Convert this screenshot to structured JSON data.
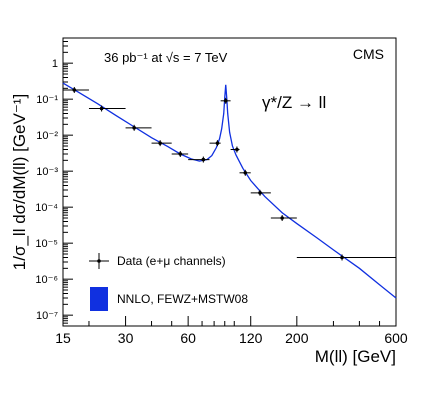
{
  "chart_data": {
    "type": "scatter",
    "title": "",
    "xlabel": "M(ll)  [GeV]",
    "ylabel": "1/σ_ll dσ/dM(ll) [GeV⁻¹]",
    "xscale": "log",
    "yscale": "log",
    "xlim": [
      15,
      600
    ],
    "ylim": [
      5e-08,
      5
    ],
    "xticks": [
      "15",
      "30",
      "60",
      "120",
      "200",
      "600"
    ],
    "yticks": [
      "10⁻⁷",
      "10⁻⁶",
      "10⁻⁵",
      "10⁻⁴",
      "10⁻³",
      "10⁻²",
      "10⁻¹",
      "1"
    ],
    "annotations": {
      "lumi": "36 pb⁻¹ at √s = 7 TeV",
      "experiment": "CMS",
      "process": "γ*/Z → ll"
    },
    "legend": {
      "placement": "bottom-left",
      "data_label": "Data (e+μ channels)",
      "theory_label": "NNLO, FEWZ+MSTW08"
    },
    "colors": {
      "theory": "#1030e0",
      "data": "#000000"
    },
    "series": [
      {
        "name": "Data (e+μ channels)",
        "points": [
          {
            "x": 17,
            "xlo": 15,
            "xhi": 20,
            "y": 0.18
          },
          {
            "x": 23,
            "xlo": 20,
            "xhi": 30,
            "y": 0.055
          },
          {
            "x": 33,
            "xlo": 30,
            "xhi": 40,
            "y": 0.016
          },
          {
            "x": 44,
            "xlo": 40,
            "xhi": 50,
            "y": 0.006
          },
          {
            "x": 55,
            "xlo": 50,
            "xhi": 60,
            "y": 0.003
          },
          {
            "x": 71,
            "xlo": 60,
            "xhi": 76,
            "y": 0.0021
          },
          {
            "x": 83,
            "xlo": 76,
            "xhi": 86,
            "y": 0.006
          },
          {
            "x": 91,
            "xlo": 86,
            "xhi": 96,
            "y": 0.09
          },
          {
            "x": 103,
            "xlo": 96,
            "xhi": 106,
            "y": 0.004
          },
          {
            "x": 113,
            "xlo": 106,
            "xhi": 120,
            "y": 0.0009
          },
          {
            "x": 133,
            "xlo": 120,
            "xhi": 150,
            "y": 0.00025
          },
          {
            "x": 170,
            "xlo": 150,
            "xhi": 200,
            "y": 5e-05
          },
          {
            "x": 330,
            "xlo": 200,
            "xhi": 600,
            "y": 4e-06
          }
        ]
      },
      {
        "name": "NNLO, FEWZ+MSTW08",
        "curve": [
          [
            15,
            0.28
          ],
          [
            18,
            0.15
          ],
          [
            22,
            0.075
          ],
          [
            27,
            0.035
          ],
          [
            33,
            0.017
          ],
          [
            40,
            0.0085
          ],
          [
            48,
            0.0048
          ],
          [
            55,
            0.003
          ],
          [
            62,
            0.0022
          ],
          [
            68,
            0.0019
          ],
          [
            74,
            0.0021
          ],
          [
            78,
            0.0027
          ],
          [
            82,
            0.0045
          ],
          [
            85,
            0.008
          ],
          [
            87,
            0.015
          ],
          [
            89,
            0.04
          ],
          [
            90,
            0.11
          ],
          [
            91,
            0.25
          ],
          [
            92,
            0.11
          ],
          [
            93,
            0.04
          ],
          [
            95,
            0.012
          ],
          [
            98,
            0.005
          ],
          [
            102,
            0.0028
          ],
          [
            110,
            0.0012
          ],
          [
            120,
            0.00055
          ],
          [
            140,
            0.0002
          ],
          [
            170,
            7e-05
          ],
          [
            200,
            3.5e-05
          ],
          [
            250,
            1.4e-05
          ],
          [
            300,
            6.5e-06
          ],
          [
            400,
            2e-06
          ],
          [
            500,
            7e-07
          ],
          [
            600,
            3e-07
          ]
        ]
      }
    ]
  }
}
